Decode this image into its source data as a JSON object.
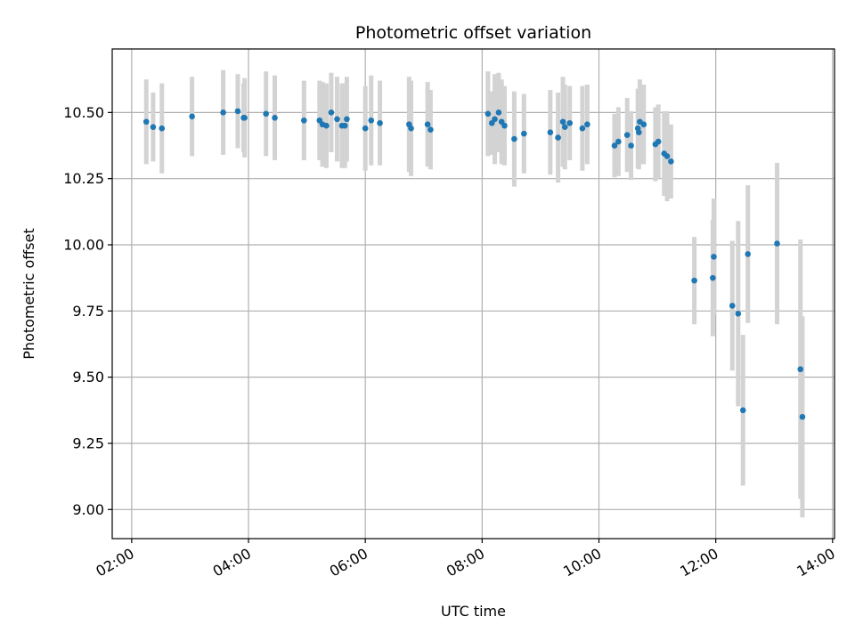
{
  "chart_data": {
    "type": "scatter",
    "title": "Photometric offset variation",
    "xlabel": "UTC time",
    "ylabel": "Photometric offset",
    "x_ticks": [
      "02:00",
      "04:00",
      "06:00",
      "08:00",
      "10:00",
      "12:00",
      "14:00"
    ],
    "y_ticks": [
      "9.00",
      "9.25",
      "9.50",
      "9.75",
      "10.00",
      "10.25",
      "10.50"
    ],
    "xlim": [
      "01:40",
      "14:02"
    ],
    "ylim": [
      8.89,
      10.74
    ],
    "grid": true,
    "legend": "none",
    "colors": {
      "point": "#1f77b4",
      "errorbar": "#d3d3d3",
      "grid": "#b0b0b0"
    },
    "series": [
      {
        "x": [
          "02:15",
          "02:22",
          "02:31",
          "03:02",
          "03:34",
          "03:49",
          "03:55",
          "03:56",
          "04:18",
          "04:27",
          "04:57",
          "05:13",
          "05:16",
          "05:20",
          "05:25",
          "05:31",
          "05:36",
          "05:39",
          "05:41",
          "06:00",
          "06:06",
          "06:15",
          "06:45",
          "06:47",
          "07:04",
          "07:07",
          "08:06",
          "08:10",
          "08:13",
          "08:17",
          "08:20",
          "08:23",
          "08:33",
          "08:43",
          "09:10",
          "09:18",
          "09:23",
          "09:25",
          "09:30",
          "09:43",
          "09:48",
          "10:16",
          "10:20",
          "10:29",
          "10:33",
          "10:40",
          "10:41",
          "10:42",
          "10:46",
          "10:58",
          "11:01",
          "11:07",
          "11:10",
          "11:14",
          "11:38",
          "11:57",
          "11:58",
          "12:17",
          "12:23",
          "12:28",
          "12:33",
          "13:03",
          "13:27",
          "13:29"
        ],
        "y": [
          10.465,
          10.445,
          10.44,
          10.485,
          10.5,
          10.505,
          10.48,
          10.48,
          10.495,
          10.48,
          10.47,
          10.47,
          10.455,
          10.45,
          10.5,
          10.475,
          10.45,
          10.45,
          10.475,
          10.44,
          10.47,
          10.46,
          10.455,
          10.44,
          10.455,
          10.435,
          10.495,
          10.46,
          10.475,
          10.5,
          10.465,
          10.45,
          10.4,
          10.42,
          10.425,
          10.405,
          10.465,
          10.445,
          10.46,
          10.44,
          10.455,
          10.375,
          10.39,
          10.415,
          10.375,
          10.44,
          10.425,
          10.465,
          10.455,
          10.38,
          10.39,
          10.345,
          10.335,
          10.315,
          9.865,
          9.875,
          9.955,
          9.77,
          9.74,
          9.375,
          9.965,
          10.005,
          9.53,
          9.35
        ],
        "err": [
          0.16,
          0.13,
          0.17,
          0.15,
          0.16,
          0.14,
          0.13,
          0.15,
          0.16,
          0.16,
          0.15,
          0.15,
          0.16,
          0.16,
          0.15,
          0.16,
          0.16,
          0.16,
          0.16,
          0.16,
          0.17,
          0.16,
          0.18,
          0.18,
          0.16,
          0.15,
          0.16,
          0.12,
          0.17,
          0.15,
          0.16,
          0.15,
          0.18,
          0.15,
          0.16,
          0.17,
          0.17,
          0.16,
          0.14,
          0.16,
          0.15,
          0.12,
          0.13,
          0.14,
          0.13,
          0.15,
          0.14,
          0.16,
          0.15,
          0.14,
          0.14,
          0.16,
          0.17,
          0.14,
          0.165,
          0.22,
          0.22,
          0.245,
          0.35,
          0.285,
          0.26,
          0.305,
          0.49,
          0.38
        ]
      }
    ]
  }
}
